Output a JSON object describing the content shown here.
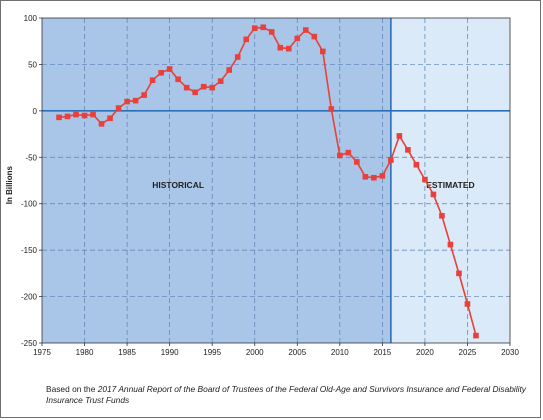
{
  "chart_data": {
    "type": "line",
    "title": "",
    "xlabel": "",
    "ylabel": "In Billions",
    "xlim": [
      1975,
      2030
    ],
    "ylim": [
      -250,
      100
    ],
    "x_ticks": [
      1975,
      1980,
      1985,
      1990,
      1995,
      2000,
      2005,
      2010,
      2015,
      2020,
      2025,
      2030
    ],
    "y_ticks": [
      100,
      50,
      0,
      -50,
      -100,
      -150,
      -200,
      -250
    ],
    "grid": true,
    "divider_x": 2016,
    "regions": [
      {
        "label": "HISTORICAL",
        "from": 1975,
        "to": 2016,
        "color": "#a9c6e8"
      },
      {
        "label": "ESTIMATED",
        "from": 2016,
        "to": 2030,
        "color": "#daeaf8"
      }
    ],
    "series": [
      {
        "color": "#e8403a",
        "x": [
          1977,
          1978,
          1979,
          1980,
          1981,
          1982,
          1983,
          1984,
          1985,
          1986,
          1987,
          1988,
          1989,
          1990,
          1991,
          1992,
          1993,
          1994,
          1995,
          1996,
          1997,
          1998,
          1999,
          2000,
          2001,
          2002,
          2003,
          2004,
          2005,
          2006,
          2007,
          2008,
          2009,
          2010,
          2011,
          2012,
          2013,
          2014,
          2015,
          2016,
          2017,
          2018,
          2019,
          2020,
          2021,
          2022,
          2023,
          2024,
          2025,
          2026
        ],
        "y": [
          -7,
          -6,
          -4,
          -5,
          -4,
          -14,
          -8,
          3,
          10,
          11,
          17,
          33,
          41,
          45,
          34,
          25,
          20,
          26,
          25,
          32,
          44,
          58,
          77,
          89,
          90,
          85,
          68,
          67,
          78,
          87,
          80,
          64,
          2,
          -48,
          -45,
          -55,
          -71,
          -72,
          -70,
          -53,
          -27,
          -42,
          -58,
          -74,
          -90,
          -113,
          -144,
          -175,
          -208,
          -242
        ]
      }
    ]
  },
  "footnote": {
    "prefix": "Based on the ",
    "italic": "2017 Annual Report of the Board of Trustees of the Federal Old-Age and Survivors Insurance and Federal Disability Insurance Trust Funds"
  }
}
